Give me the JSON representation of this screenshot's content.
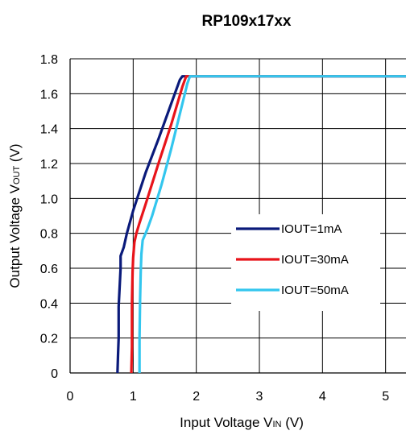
{
  "chart_data": {
    "type": "line",
    "title": "RP109x17xx",
    "xlabel": {
      "main": "Input Voltage V",
      "sub": "IN",
      "unit": " (V)"
    },
    "ylabel": {
      "main": "Output Voltage V",
      "sub": "OUT",
      "unit": " (V)"
    },
    "xlim": [
      0,
      5.4
    ],
    "ylim": [
      0,
      1.8
    ],
    "x_ticks": [
      "0",
      "1",
      "2",
      "3",
      "4",
      "5"
    ],
    "y_ticks": [
      "0",
      "0.2",
      "0.4",
      "0.6",
      "0.8",
      "1.0",
      "1.2",
      "1.4",
      "1.6",
      "1.8"
    ],
    "grid": true,
    "legend_position": "center-right",
    "series": [
      {
        "name": "IOUT=1mA",
        "color": "#0a1a7a",
        "points": [
          [
            0.75,
            0.0
          ],
          [
            0.76,
            0.1
          ],
          [
            0.77,
            0.2
          ],
          [
            0.77,
            0.38
          ],
          [
            0.8,
            0.6
          ],
          [
            0.8,
            0.67
          ],
          [
            0.85,
            0.72
          ],
          [
            0.9,
            0.8
          ],
          [
            1.0,
            0.93
          ],
          [
            1.2,
            1.15
          ],
          [
            1.4,
            1.34
          ],
          [
            1.6,
            1.54
          ],
          [
            1.74,
            1.68
          ],
          [
            1.78,
            1.7
          ],
          [
            5.4,
            1.7
          ]
        ]
      },
      {
        "name": "IOUT=30mA",
        "color": "#e8141a",
        "points": [
          [
            0.97,
            0.0
          ],
          [
            0.98,
            0.15
          ],
          [
            0.98,
            0.4
          ],
          [
            0.99,
            0.58
          ],
          [
            1.0,
            0.66
          ],
          [
            1.02,
            0.75
          ],
          [
            1.05,
            0.8
          ],
          [
            1.1,
            0.86
          ],
          [
            1.2,
            0.97
          ],
          [
            1.4,
            1.2
          ],
          [
            1.6,
            1.42
          ],
          [
            1.78,
            1.64
          ],
          [
            1.84,
            1.7
          ],
          [
            5.4,
            1.7
          ]
        ]
      },
      {
        "name": "IOUT=50mA",
        "color": "#33c6ee",
        "points": [
          [
            1.1,
            0.0
          ],
          [
            1.1,
            0.2
          ],
          [
            1.11,
            0.42
          ],
          [
            1.12,
            0.58
          ],
          [
            1.13,
            0.68
          ],
          [
            1.15,
            0.76
          ],
          [
            1.22,
            0.82
          ],
          [
            1.3,
            0.9
          ],
          [
            1.45,
            1.08
          ],
          [
            1.6,
            1.28
          ],
          [
            1.75,
            1.5
          ],
          [
            1.86,
            1.66
          ],
          [
            1.9,
            1.7
          ],
          [
            5.4,
            1.7
          ]
        ]
      }
    ]
  }
}
